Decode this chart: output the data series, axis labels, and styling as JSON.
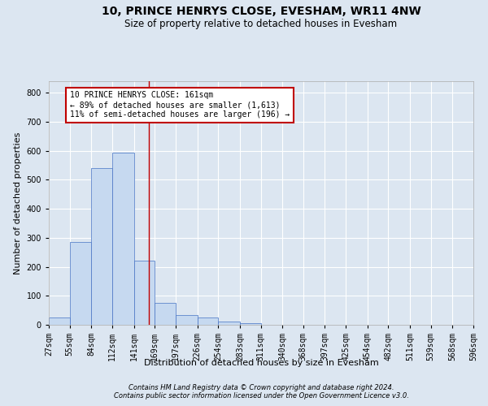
{
  "title": "10, PRINCE HENRYS CLOSE, EVESHAM, WR11 4NW",
  "subtitle": "Size of property relative to detached houses in Evesham",
  "xlabel": "Distribution of detached houses by size in Evesham",
  "ylabel": "Number of detached properties",
  "bar_values": [
    25,
    285,
    540,
    595,
    220,
    75,
    33,
    25,
    10,
    5,
    1,
    0,
    0,
    0,
    0,
    0,
    0,
    0,
    0,
    0
  ],
  "bin_edges": [
    27,
    55,
    84,
    112,
    141,
    169,
    197,
    226,
    254,
    283,
    311,
    340,
    368,
    397,
    425,
    454,
    482,
    511,
    539,
    568,
    596
  ],
  "tick_labels": [
    "27sqm",
    "55sqm",
    "84sqm",
    "112sqm",
    "141sqm",
    "169sqm",
    "197sqm",
    "226sqm",
    "254sqm",
    "283sqm",
    "311sqm",
    "340sqm",
    "368sqm",
    "397sqm",
    "425sqm",
    "454sqm",
    "482sqm",
    "511sqm",
    "539sqm",
    "568sqm",
    "596sqm"
  ],
  "bar_color": "#c6d9f0",
  "bar_edge_color": "#4472c4",
  "bg_color": "#dce6f1",
  "plot_bg_color": "#dce6f1",
  "grid_color": "#ffffff",
  "property_line_x": 161,
  "property_line_color": "#c00000",
  "annotation_text": "10 PRINCE HENRYS CLOSE: 161sqm\n← 89% of detached houses are smaller (1,613)\n11% of semi-detached houses are larger (196) →",
  "annotation_box_color": "#c00000",
  "ylim": [
    0,
    840
  ],
  "yticks": [
    0,
    100,
    200,
    300,
    400,
    500,
    600,
    700,
    800
  ],
  "footer_line1": "Contains HM Land Registry data © Crown copyright and database right 2024.",
  "footer_line2": "Contains public sector information licensed under the Open Government Licence v3.0.",
  "title_fontsize": 10,
  "subtitle_fontsize": 8.5,
  "xlabel_fontsize": 8,
  "ylabel_fontsize": 8,
  "tick_fontsize": 7,
  "footer_fontsize": 6,
  "annotation_fontsize": 7
}
